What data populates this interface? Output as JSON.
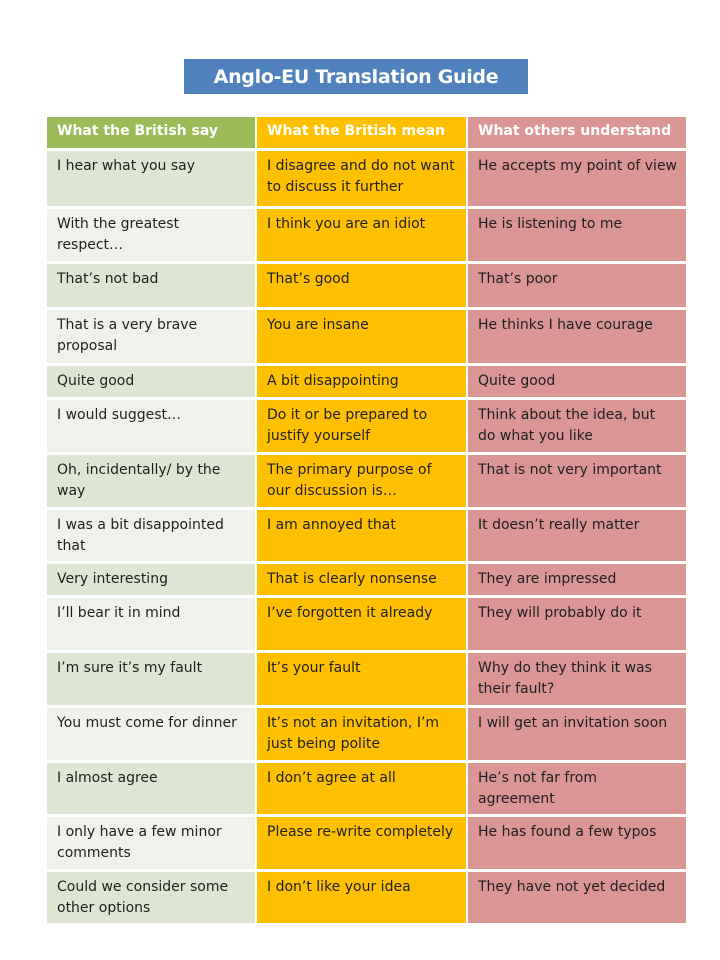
{
  "title": "Anglo-EU Translation Guide",
  "colors": {
    "title_bg": "#4f81bd",
    "col_say_header": "#9bbb59",
    "col_mean": "#ffc000",
    "col_understand": "#d99694",
    "col_say_row_a": "#dde6d2",
    "col_say_row_b": "#eef2ea"
  },
  "table": {
    "headers": [
      "What the British say",
      "What the British mean",
      "What others understand"
    ],
    "rows": [
      {
        "say": "I hear what you say",
        "mean": "I disagree and do not want to discuss it further",
        "understand": "He accepts my point of view",
        "h": 58
      },
      {
        "say": "With the greatest respect…",
        "mean": "I think you are an idiot",
        "understand": "He is listening to me",
        "h": 55
      },
      {
        "say": "That’s not bad",
        "mean": "That’s good",
        "understand": "That’s poor",
        "h": 46
      },
      {
        "say": "That is a very brave proposal",
        "mean": "You are insane",
        "understand": "He thinks I have courage",
        "h": 56
      },
      {
        "say": "Quite good",
        "mean": "A bit disappointing",
        "understand": "Quite good",
        "h": 34
      },
      {
        "say": "I would suggest…",
        "mean": "Do it or be prepared to justify yourself",
        "understand": "Think about the idea, but do what you like",
        "h": 55
      },
      {
        "say": "Oh, incidentally/ by the way",
        "mean": "The primary purpose of our discussion is…",
        "understand": "That is not very important",
        "h": 55
      },
      {
        "say": "I was a bit disappointed that",
        "mean": "I am annoyed that",
        "understand": "It doesn’t really matter",
        "h": 54
      },
      {
        "say": "Very interesting",
        "mean": "That is clearly nonsense",
        "understand": "They are impressed",
        "h": 34
      },
      {
        "say": "I’ll bear it in mind",
        "mean": "I’ve forgotten it already",
        "understand": "They will probably do it",
        "h": 55
      },
      {
        "say": "I’m sure it’s my fault",
        "mean": "It’s your fault",
        "understand": "Why do they think it was their fault?",
        "h": 55
      },
      {
        "say": "You must come for dinner",
        "mean": "It’s not an invitation, I’m just being polite",
        "understand": "I will get an invitation soon",
        "h": 55
      },
      {
        "say": "I almost agree",
        "mean": "I don’t agree at all",
        "understand": "He’s not far from agreement",
        "h": 54
      },
      {
        "say": "I only have a few minor comments",
        "mean": "Please re-write completely",
        "understand": "He has found a few typos",
        "h": 55
      },
      {
        "say": "Could we consider some other options",
        "mean": "I don’t like your idea",
        "understand": "They have not yet decided",
        "h": 54
      }
    ]
  }
}
